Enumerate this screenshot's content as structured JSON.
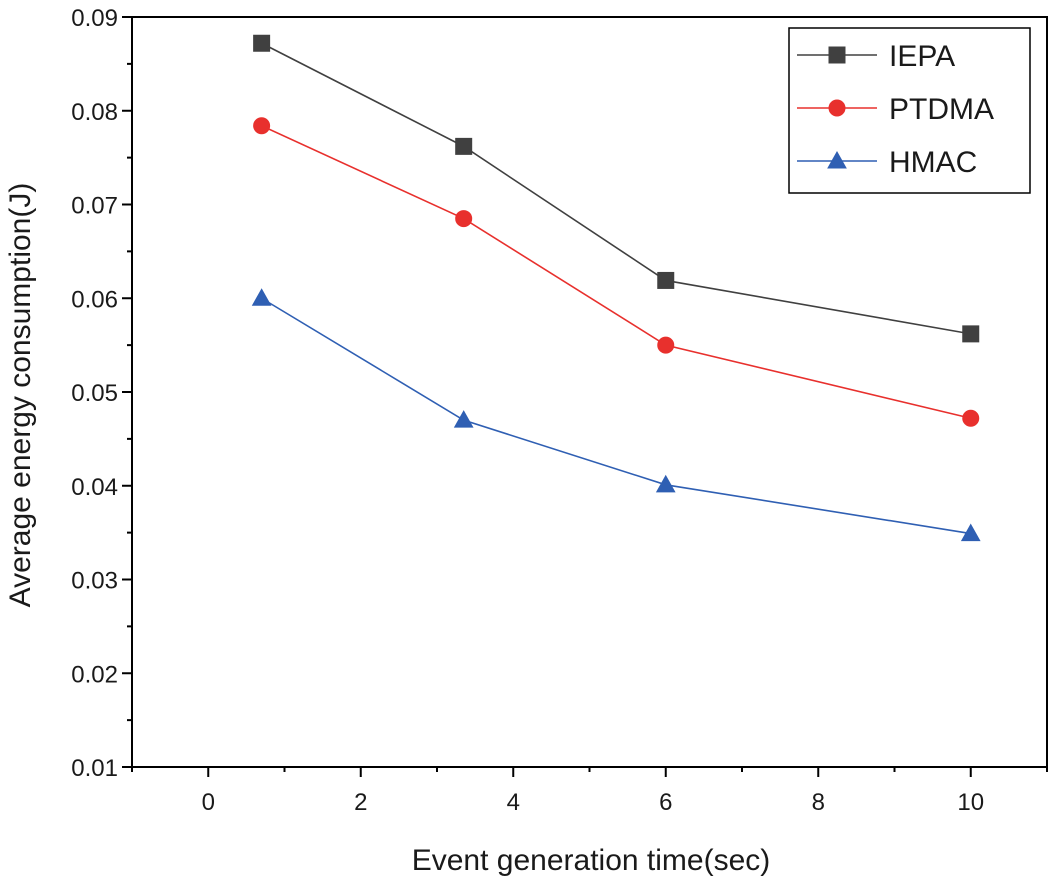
{
  "chart_data": {
    "type": "line",
    "xlabel": "Event generation time(sec)",
    "ylabel": "Average energy consumption(J)",
    "xlim": [
      -1,
      11
    ],
    "ylim": [
      0.01,
      0.09
    ],
    "xticks": [
      0,
      2,
      4,
      6,
      8,
      10
    ],
    "xtick_labels": [
      "0",
      "2",
      "4",
      "6",
      "8",
      "10"
    ],
    "yticks": [
      0.01,
      0.02,
      0.03,
      0.04,
      0.05,
      0.06,
      0.07,
      0.08,
      0.09
    ],
    "ytick_labels": [
      "0.01",
      "0.02",
      "0.03",
      "0.04",
      "0.05",
      "0.06",
      "0.07",
      "0.08",
      "0.09"
    ],
    "grid": false,
    "legend_position": "top-right",
    "x": [
      0.7,
      3.35,
      6,
      10
    ],
    "series": [
      {
        "name": "IEPA",
        "values": [
          0.0872,
          0.0762,
          0.0619,
          0.0562
        ],
        "color": "#404040",
        "marker": "square"
      },
      {
        "name": "PTDMA",
        "values": [
          0.0784,
          0.0685,
          0.055,
          0.0472
        ],
        "color": "#e8302d",
        "marker": "circle"
      },
      {
        "name": "HMAC",
        "values": [
          0.06,
          0.047,
          0.0401,
          0.0349
        ],
        "color": "#2f5fb3",
        "marker": "triangle"
      }
    ]
  }
}
